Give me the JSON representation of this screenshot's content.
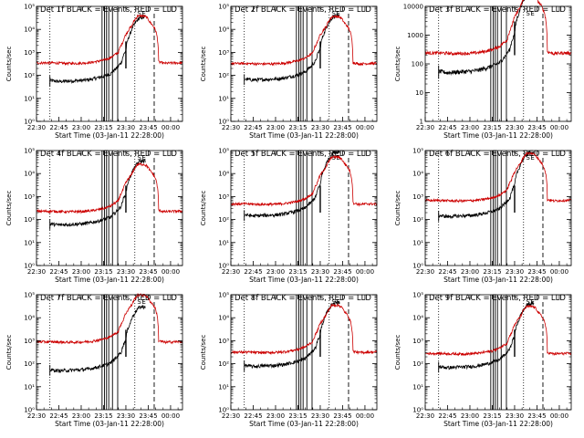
{
  "chart_data": {
    "type": "line",
    "layout": "3x3 grid of panels",
    "common": {
      "xlabel": "Start Time (03-Jan-11 22:28:00)",
      "ylabel": "Counts/sec",
      "x_tick_labels": [
        "22:30",
        "22:45",
        "23:00",
        "23:15",
        "23:30",
        "23:45",
        "00:00"
      ],
      "x_tick_minutes": [
        30,
        45,
        60,
        75,
        90,
        105,
        120
      ],
      "xlim_minutes_after_22h": [
        30,
        128
      ],
      "yscale": "log",
      "series_colors": {
        "Events": "#000000",
        "LLD": "#cc0000"
      },
      "dotted_lines_minutes": [
        39,
        96
      ],
      "dashed_line_minutes": 109,
      "solid_lines_minutes": [
        74,
        75.6,
        77,
        78.5,
        81,
        84.5
      ],
      "solid_marker_minutes": 90,
      "solid_marker_range": [
        200,
        3000
      ],
      "top_markers": [
        {
          "label": "S",
          "minute": 99
        },
        {
          "label": "E",
          "minute": 102
        }
      ],
      "lld_profile": {
        "minutes": [
          30,
          40,
          50,
          60,
          67,
          72,
          75,
          80,
          85,
          88,
          91,
          94,
          98,
          102,
          104,
          106,
          110,
          112,
          116,
          122,
          128
        ],
        "rel": [
          1.0,
          1.0,
          0.95,
          0.97,
          1.05,
          1.2,
          1.3,
          1.7,
          2.8,
          8,
          22,
          40,
          110,
          110,
          95,
          60,
          25,
          1.1,
          0.95,
          1.0,
          1.0
        ]
      },
      "events_profile": {
        "start_minute": 39,
        "minutes": [
          39,
          45,
          52,
          60,
          66,
          72,
          76,
          80,
          84,
          87,
          90,
          93,
          96,
          99,
          103
        ],
        "rel": [
          1.0,
          0.9,
          0.95,
          1.0,
          1.1,
          1.35,
          1.6,
          2.0,
          3.5,
          6,
          20,
          110,
          290,
          520,
          560
        ]
      },
      "events_end_minute": 103
    },
    "panels": [
      {
        "title": "Det 1f BLACK = Events, RED = LLD",
        "ylim": [
          1,
          100000
        ],
        "y_ticks": [
          "10⁰",
          "10¹",
          "10²",
          "10³",
          "10⁴",
          "10⁵"
        ],
        "lld_base": 350,
        "events_base": 60
      },
      {
        "title": "Det 2f BLACK = Events, RED = LLD",
        "ylim": [
          1,
          100000
        ],
        "y_ticks": [
          "10⁰",
          "10¹",
          "10²",
          "10³",
          "10⁴",
          "10⁵"
        ],
        "lld_base": 330,
        "events_base": 70
      },
      {
        "title": "Det 3f BLACK = Events, RED = LLD",
        "ylim": [
          1,
          10000
        ],
        "y_ticks": [
          "1",
          "10",
          "100",
          "1000",
          "10000"
        ],
        "lld_base": 240,
        "events_base": 55
      },
      {
        "title": "Det 4f BLACK = Events, RED = LLD",
        "ylim": [
          1,
          100000
        ],
        "y_ticks": [
          "10⁰",
          "10¹",
          "10²",
          "10³",
          "10⁴",
          "10⁵"
        ],
        "lld_base": 230,
        "events_base": 65
      },
      {
        "title": "Det 5f BLACK = Events, RED = LLD",
        "ylim": [
          1,
          100000
        ],
        "y_ticks": [
          "10⁰",
          "10¹",
          "10²",
          "10³",
          "10⁴",
          "10⁵"
        ],
        "lld_base": 480,
        "events_base": 160
      },
      {
        "title": "Det 6f BLACK = Events, RED = LLD",
        "ylim": [
          1,
          100000
        ],
        "y_ticks": [
          "10⁰",
          "10¹",
          "10²",
          "10³",
          "10⁴",
          "10⁵"
        ],
        "lld_base": 680,
        "events_base": 150
      },
      {
        "title": "Det 7f BLACK = Events, RED = LLD",
        "ylim": [
          1,
          100000
        ],
        "y_ticks": [
          "10⁰",
          "10¹",
          "10²",
          "10³",
          "10⁴",
          "10⁵"
        ],
        "lld_base": 900,
        "events_base": 55
      },
      {
        "title": "Det 8f BLACK = Events, RED = LLD",
        "ylim": [
          1,
          100000
        ],
        "y_ticks": [
          "10⁰",
          "10¹",
          "10²",
          "10³",
          "10⁴",
          "10⁵"
        ],
        "lld_base": 320,
        "events_base": 85
      },
      {
        "title": "Det 9f BLACK = Events, RED = LLD",
        "ylim": [
          1,
          100000
        ],
        "y_ticks": [
          "10⁰",
          "10¹",
          "10²",
          "10³",
          "10⁴",
          "10⁵"
        ],
        "lld_base": 280,
        "events_base": 75
      }
    ]
  }
}
